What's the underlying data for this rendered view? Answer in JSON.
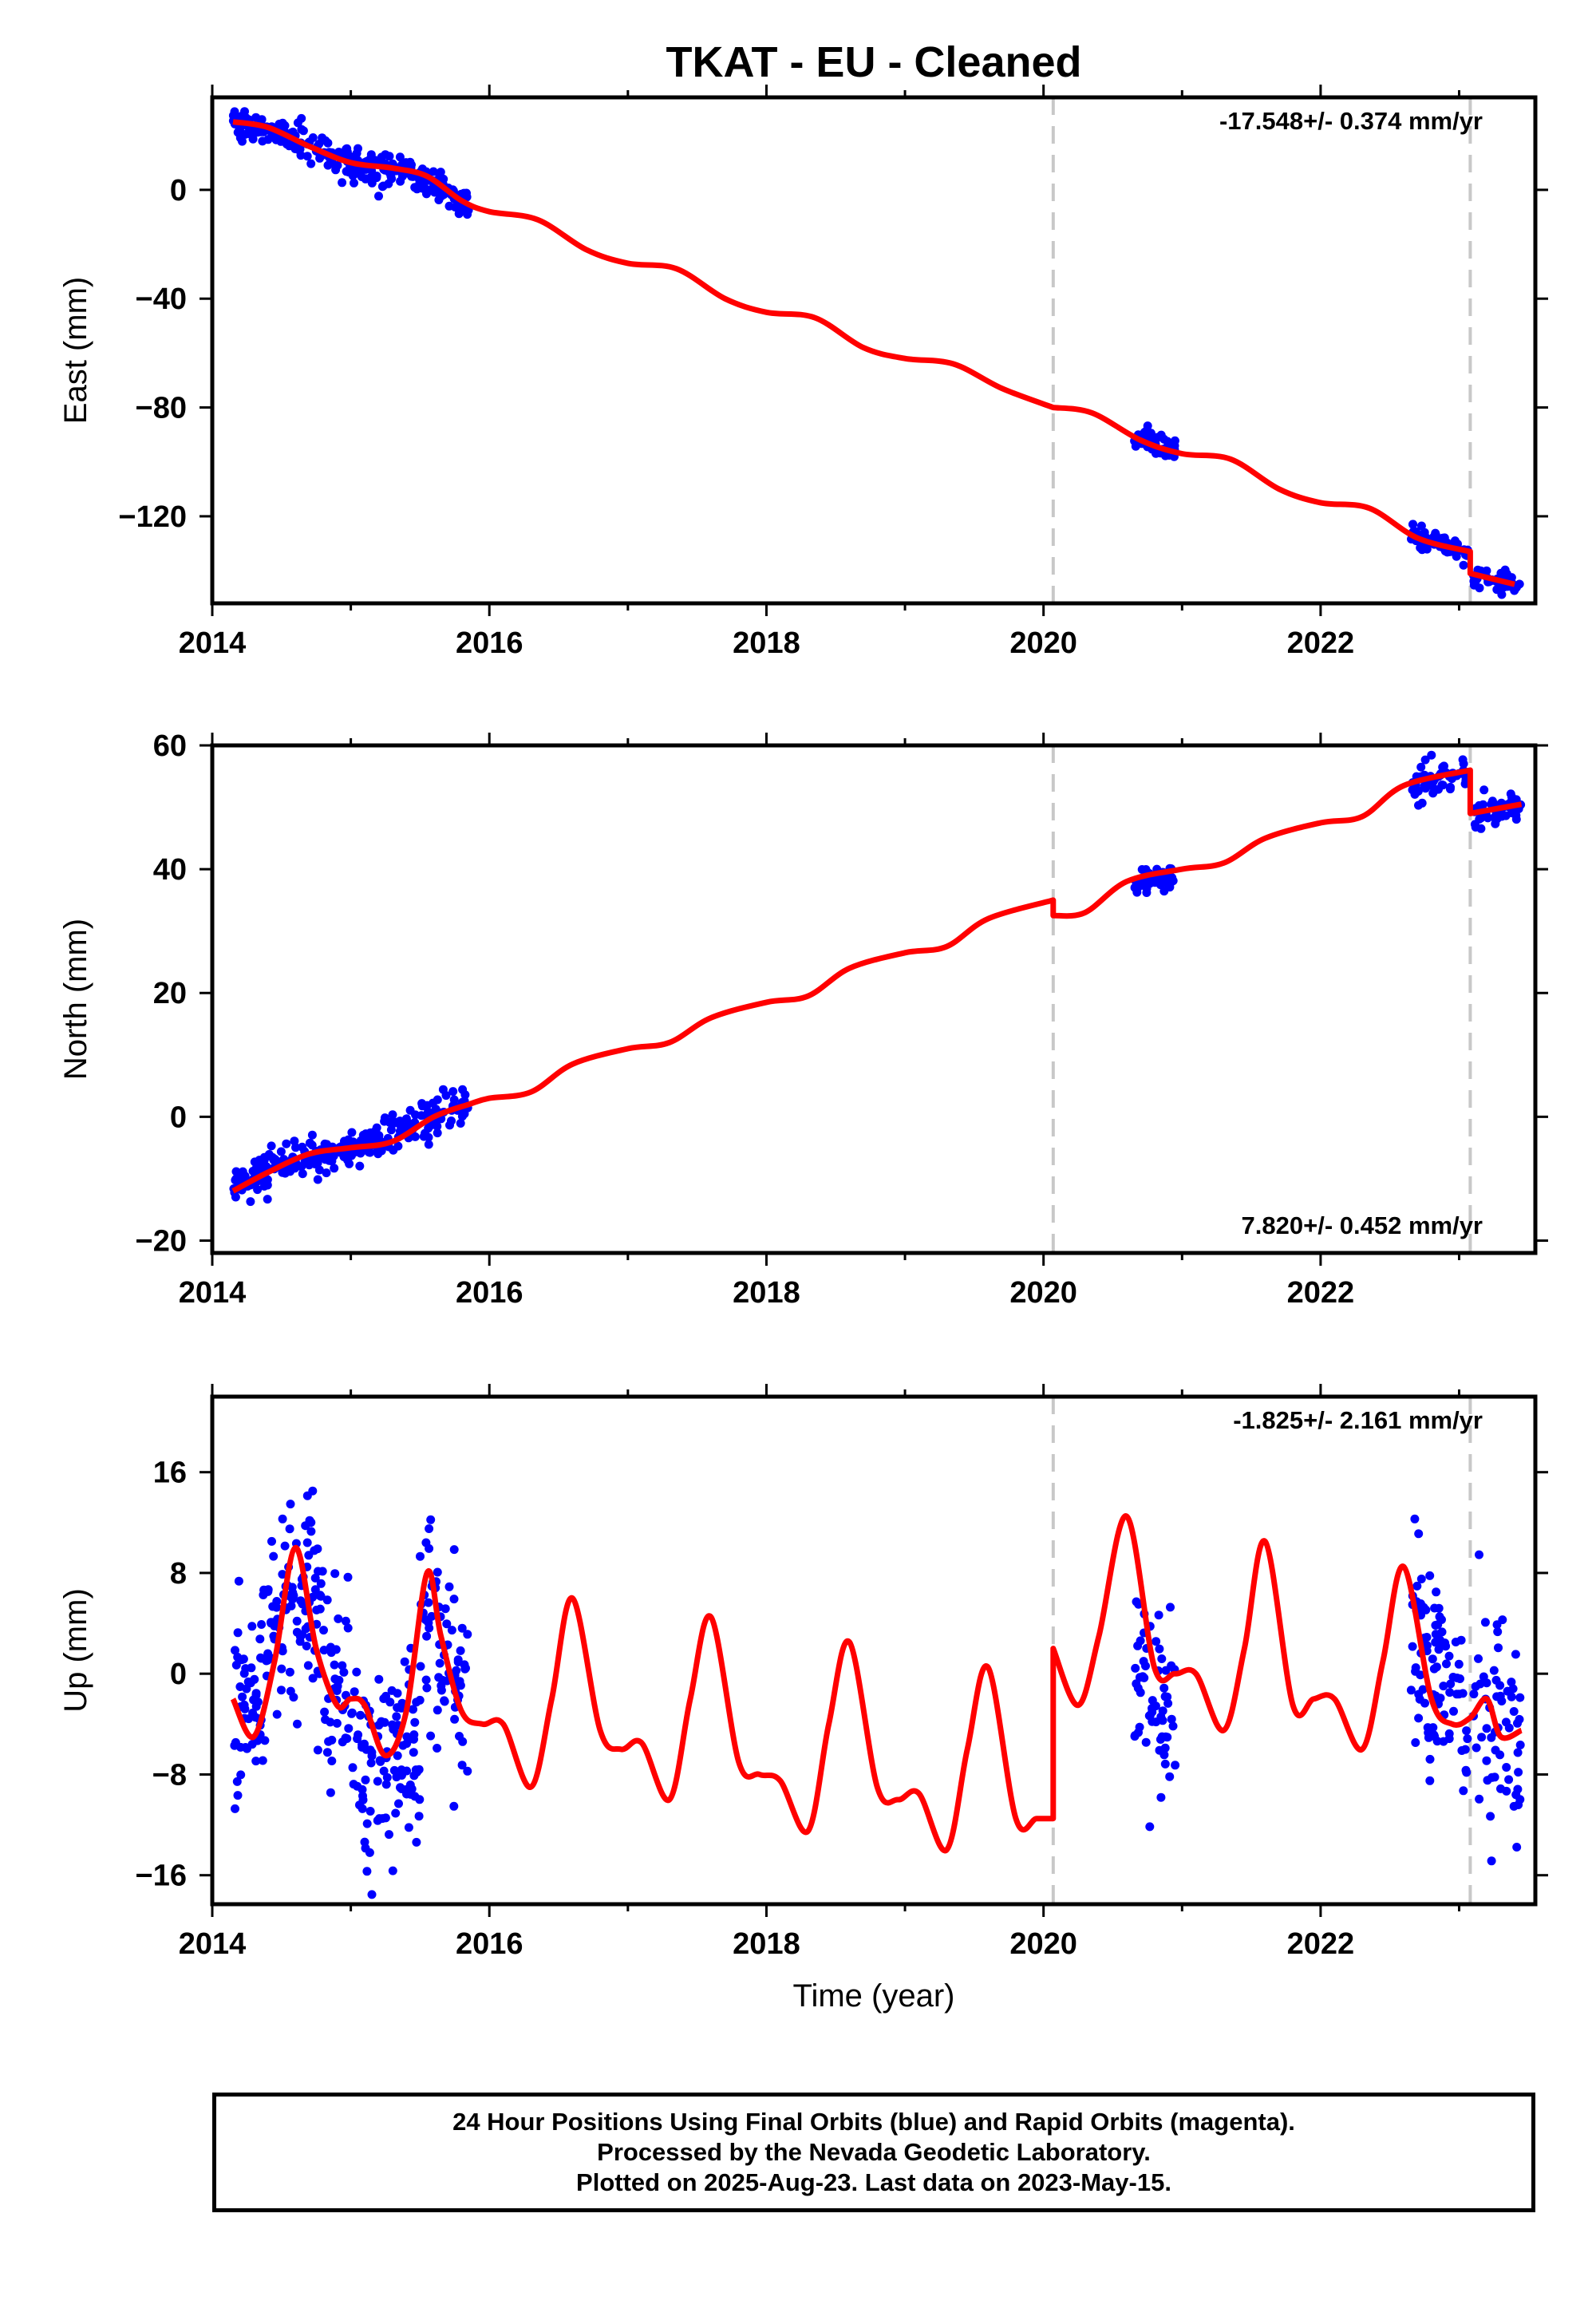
{
  "title": "TKAT  - EU - Cleaned",
  "xlabel": "Time (year)",
  "footer": {
    "line1": "24 Hour Positions Using Final Orbits (blue) and Rapid Orbits (magenta).",
    "line2": "Processed by the Nevada Geodetic Laboratory.",
    "line3": "Plotted on 2025-Aug-23. Last data on 2023-May-15."
  },
  "colors": {
    "data": "#0000ff",
    "model": "#ff0000",
    "break": "#c8c8c8"
  },
  "chart_data": [
    {
      "type": "scatter",
      "panel": "east",
      "ylabel": "East (mm)",
      "rate_text": "-17.548+/- 0.374 mm/yr",
      "rate_position": "top-right",
      "xlim": [
        2014.0,
        2023.55
      ],
      "ylim": [
        -152,
        34
      ],
      "xticks": [
        2014,
        2016,
        2018,
        2020,
        2022
      ],
      "yticks": [
        0,
        -40,
        -80,
        -120
      ],
      "ytick_labels": [
        "0",
        "−40",
        "−80",
        "−120"
      ],
      "breaks": [
        2020.07,
        2023.08
      ],
      "model": {
        "x": [
          2014.15,
          2014.4,
          2014.7,
          2015.0,
          2015.3,
          2015.55,
          2015.8,
          2016.0,
          2016.35,
          2016.7,
          2017.0,
          2017.35,
          2017.7,
          2018.0,
          2018.35,
          2018.7,
          2019.0,
          2019.35,
          2019.7,
          2020.07,
          2020.07,
          2020.35,
          2020.7,
          2021.0,
          2021.35,
          2021.7,
          2022.0,
          2022.35,
          2022.7,
          2023.08,
          2023.08,
          2023.4
        ],
        "y": [
          25,
          23,
          16,
          10,
          8,
          5,
          -4,
          -8,
          -11,
          -22,
          -27,
          -29,
          -40,
          -45,
          -47,
          -58,
          -62,
          -64,
          -73,
          -80,
          -80,
          -82,
          -92,
          -97,
          -99,
          -110,
          -115,
          -117,
          -128,
          -133,
          -141,
          -145
        ]
      },
      "clusters": [
        {
          "x0": 2014.15,
          "x1": 2014.6,
          "ymid0": 25,
          "ymid1": 19,
          "scatter": 2.5,
          "n": 80
        },
        {
          "x0": 2014.6,
          "x1": 2015.0,
          "ymid0": 19,
          "ymid1": 10,
          "scatter": 2.5,
          "n": 60
        },
        {
          "x0": 2015.0,
          "x1": 2015.5,
          "ymid0": 9,
          "ymid1": 6,
          "scatter": 3,
          "n": 90
        },
        {
          "x0": 2015.5,
          "x1": 2015.85,
          "ymid0": 5,
          "ymid1": -5,
          "scatter": 2.5,
          "n": 60
        },
        {
          "x0": 2020.65,
          "x1": 2020.95,
          "ymid0": -91,
          "ymid1": -96,
          "scatter": 2,
          "n": 50
        },
        {
          "x0": 2022.65,
          "x1": 2023.07,
          "ymid0": -127,
          "ymid1": -133,
          "scatter": 2,
          "n": 60
        },
        {
          "x0": 2023.1,
          "x1": 2023.45,
          "ymid0": -142,
          "ymid1": -145,
          "scatter": 1.8,
          "n": 45
        }
      ]
    },
    {
      "type": "scatter",
      "panel": "north",
      "ylabel": "North (mm)",
      "rate_text": "7.820+/- 0.452 mm/yr",
      "rate_position": "bottom-right",
      "xlim": [
        2014.0,
        2023.55
      ],
      "ylim": [
        -22,
        60
      ],
      "xticks": [
        2014,
        2016,
        2018,
        2020,
        2022
      ],
      "yticks": [
        60,
        40,
        20,
        0,
        -20
      ],
      "ytick_labels": [
        "60",
        "40",
        "20",
        "0",
        "−20"
      ],
      "breaks": [
        2020.07,
        2023.08
      ],
      "model": {
        "x": [
          2014.15,
          2014.4,
          2014.7,
          2015.0,
          2015.3,
          2015.6,
          2015.85,
          2016.0,
          2016.3,
          2016.6,
          2017.0,
          2017.3,
          2017.6,
          2018.0,
          2018.3,
          2018.6,
          2019.0,
          2019.3,
          2019.6,
          2020.07,
          2020.07,
          2020.3,
          2020.6,
          2021.0,
          2021.3,
          2021.6,
          2022.0,
          2022.3,
          2022.6,
          2023.08,
          2023.08,
          2023.45
        ],
        "y": [
          -12,
          -9,
          -6,
          -5,
          -4,
          0,
          2,
          3,
          4,
          8.5,
          11,
          12,
          16,
          18.5,
          19.5,
          24,
          26.5,
          27.5,
          32,
          35,
          32.5,
          33,
          38,
          40,
          41,
          45,
          47.5,
          48.5,
          53.5,
          56,
          49,
          50.5
        ]
      },
      "clusters": [
        {
          "x0": 2014.15,
          "x1": 2014.6,
          "ymid0": -11,
          "ymid1": -7,
          "scatter": 1.5,
          "n": 80
        },
        {
          "x0": 2014.6,
          "x1": 2015.1,
          "ymid0": -6.5,
          "ymid1": -5,
          "scatter": 1.5,
          "n": 70
        },
        {
          "x0": 2015.1,
          "x1": 2015.85,
          "ymid0": -4.5,
          "ymid1": 2,
          "scatter": 1.8,
          "n": 110
        },
        {
          "x0": 2020.65,
          "x1": 2020.95,
          "ymid0": 37.5,
          "ymid1": 39,
          "scatter": 1.3,
          "n": 45
        },
        {
          "x0": 2022.65,
          "x1": 2023.07,
          "ymid0": 53.5,
          "ymid1": 56,
          "scatter": 1.5,
          "n": 60
        },
        {
          "x0": 2023.1,
          "x1": 2023.45,
          "ymid0": 49,
          "ymid1": 50.5,
          "scatter": 1.4,
          "n": 45
        }
      ]
    },
    {
      "type": "scatter",
      "panel": "up",
      "ylabel": "Up (mm)",
      "rate_text": "-1.825+/- 2.161 mm/yr",
      "rate_position": "top-right",
      "xlim": [
        2014.0,
        2023.55
      ],
      "ylim": [
        -18.3,
        22
      ],
      "xticks": [
        2014,
        2016,
        2018,
        2020,
        2022
      ],
      "yticks": [
        16,
        8,
        0,
        -8,
        -16
      ],
      "ytick_labels": [
        "16",
        "8",
        "0",
        "−8",
        "−16"
      ],
      "breaks": [
        2020.07,
        2023.08
      ],
      "model": {
        "x": [
          2014.15,
          2014.3,
          2014.45,
          2014.6,
          2014.75,
          2014.9,
          2015.0,
          2015.1,
          2015.25,
          2015.4,
          2015.55,
          2015.65,
          2015.8,
          2015.95,
          2016.1,
          2016.3,
          2016.45,
          2016.6,
          2016.8,
          2016.95,
          2017.1,
          2017.3,
          2017.45,
          2017.6,
          2017.8,
          2017.95,
          2018.1,
          2018.3,
          2018.45,
          2018.6,
          2018.8,
          2018.95,
          2019.1,
          2019.3,
          2019.45,
          2019.6,
          2019.8,
          2019.95,
          2020.07,
          2020.07,
          2020.25,
          2020.4,
          2020.6,
          2020.8,
          2020.95,
          2021.1,
          2021.3,
          2021.45,
          2021.6,
          2021.8,
          2021.95,
          2022.1,
          2022.3,
          2022.45,
          2022.6,
          2022.8,
          2022.95,
          2023.08,
          2023.2,
          2023.3,
          2023.45
        ],
        "y": [
          -2,
          -5,
          1,
          10,
          2,
          -2.5,
          -2,
          -2.5,
          -6.5,
          -3,
          8,
          3,
          -3,
          -4,
          -4,
          -9,
          -2,
          6,
          -4.5,
          -6,
          -5.5,
          -10,
          -2,
          4.5,
          -7,
          -8,
          -8.5,
          -12.5,
          -4,
          2.5,
          -9,
          -10,
          -9.5,
          -14,
          -6,
          0.5,
          -11.5,
          -11.5,
          -11.5,
          2,
          -2.5,
          3,
          12.5,
          0.5,
          0,
          0,
          -4.5,
          2,
          10.5,
          -2.5,
          -2,
          -2,
          -6,
          1,
          8.5,
          -2,
          -4,
          -3.5,
          -2,
          -5,
          -4.5
        ]
      },
      "clusters": [
        {
          "x0": 2014.15,
          "x1": 2014.45,
          "ymid0": -3,
          "ymid1": 2,
          "scatter": 4,
          "n": 70
        },
        {
          "x0": 2014.45,
          "x1": 2014.8,
          "ymid0": 5,
          "ymid1": 7,
          "scatter": 4.5,
          "n": 80
        },
        {
          "x0": 2014.8,
          "x1": 2015.05,
          "ymid0": 0,
          "ymid1": -4,
          "scatter": 4,
          "n": 45
        },
        {
          "x0": 2015.05,
          "x1": 2015.5,
          "ymid0": -8,
          "ymid1": -6,
          "scatter": 4,
          "n": 100
        },
        {
          "x0": 2015.5,
          "x1": 2015.85,
          "ymid0": 6,
          "ymid1": -2,
          "scatter": 4,
          "n": 70
        },
        {
          "x0": 2020.65,
          "x1": 2020.95,
          "ymid0": 1,
          "ymid1": -3,
          "scatter": 3.5,
          "n": 60
        },
        {
          "x0": 2022.65,
          "x1": 2023.07,
          "ymid0": 4,
          "ymid1": -4,
          "scatter": 4,
          "n": 90
        },
        {
          "x0": 2023.1,
          "x1": 2023.45,
          "ymid0": -2,
          "ymid1": -6,
          "scatter": 4,
          "n": 60
        }
      ]
    }
  ]
}
